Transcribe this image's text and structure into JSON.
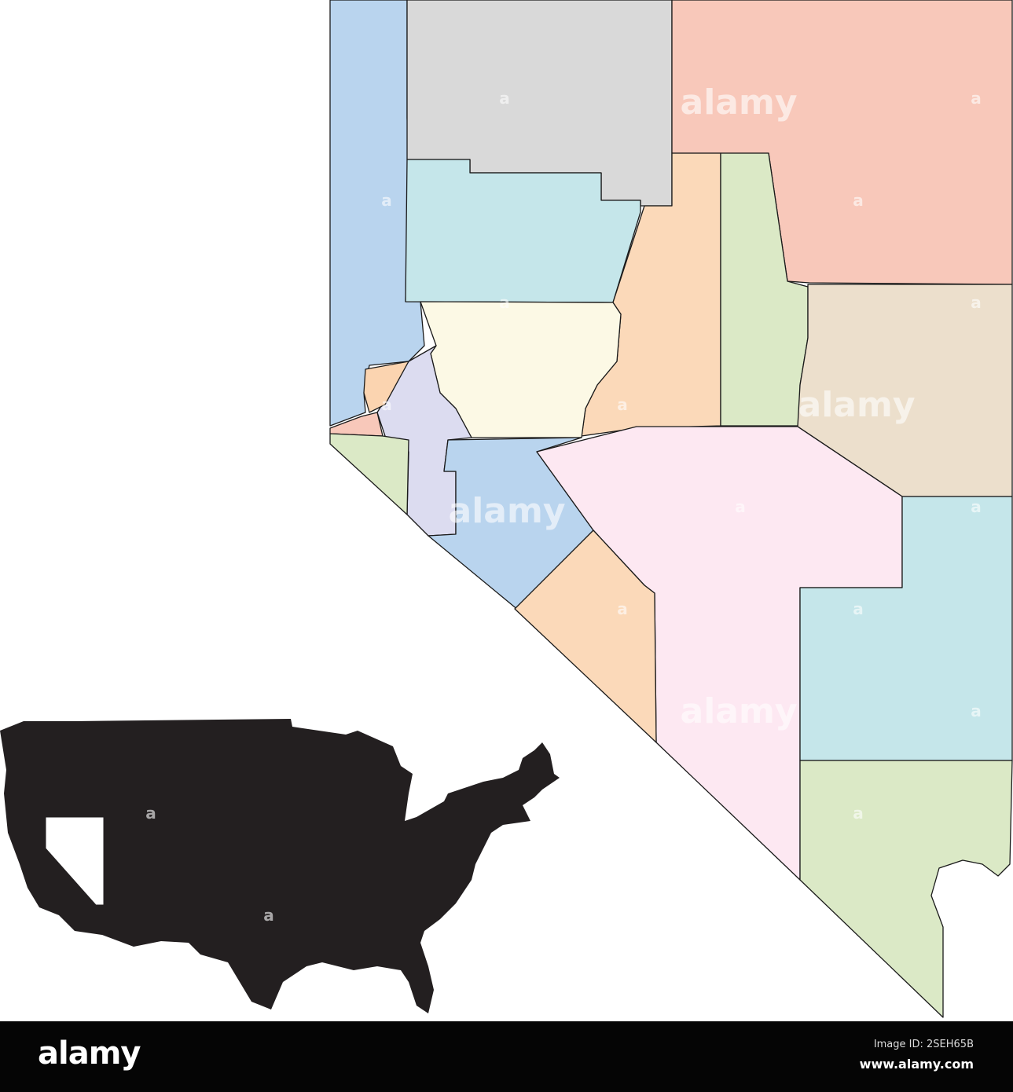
{
  "map": {
    "subject": "Nevada counties",
    "colors": {
      "washoe": "#b9d4ee",
      "humboldt": "#d9d9d9",
      "elko": "#f8c8ba",
      "pershing": "#c5e6ea",
      "lander": "#fbd9b9",
      "eureka": "#dbe9c6",
      "white_pine": "#ecdfcc",
      "churchill": "#fcf9e5",
      "lyon": "#dcdcf0",
      "carson": "#fbd4b0",
      "storey": "#f8c8ba",
      "douglas": "#dbe9c6",
      "mineral": "#b9d4ee",
      "nye": "#fde8f2",
      "esmeralda": "#fbd9b9",
      "lincoln": "#c5e6ea",
      "clark": "#dbe9c6",
      "border": "#1a1a1a",
      "usa_silhouette": "#231f20",
      "nevada_highlight": "#ffffff"
    }
  },
  "watermark": {
    "text": "alamy",
    "mark": "a"
  },
  "footer": {
    "logo": "alamy",
    "image_id": "Image ID: 2SEH65B",
    "site": "www.alamy.com"
  }
}
